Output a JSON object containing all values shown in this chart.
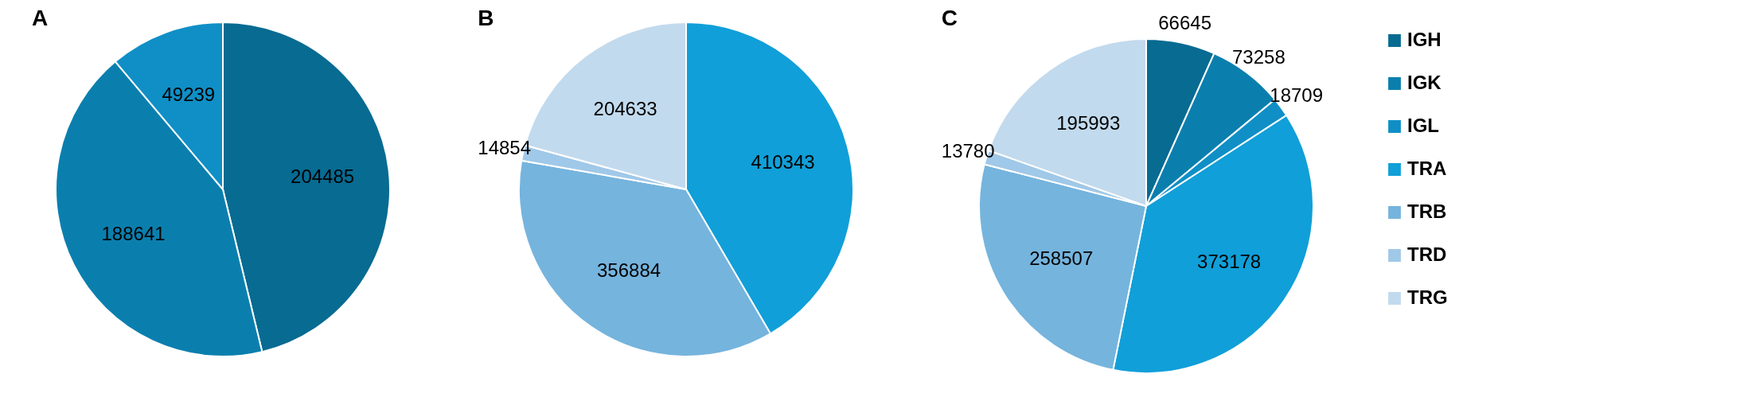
{
  "chart_data": [
    {
      "type": "pie",
      "title": "A",
      "categories": [
        null,
        null,
        null
      ],
      "values": [
        204485,
        188641,
        49239
      ],
      "colors": [
        "#076b92",
        "#0a7fae",
        "#0f8fc6"
      ],
      "data_labels": true
    },
    {
      "type": "pie",
      "title": "B",
      "categories": [
        null,
        null,
        null,
        null
      ],
      "values": [
        410343,
        356884,
        14854,
        204633
      ],
      "colors": [
        "#109fd8",
        "#75b4dd",
        "#a0c8e8",
        "#c2daed"
      ],
      "data_labels": true
    },
    {
      "type": "pie",
      "title": "C",
      "categories": [
        "IGH",
        "IGK",
        "IGL",
        "TRA",
        "TRB",
        "TRD",
        "TRG"
      ],
      "values": [
        66645,
        73258,
        18709,
        373178,
        258507,
        13780,
        195993
      ],
      "colors": [
        "#076b92",
        "#0a7fae",
        "#0f8fc6",
        "#109fd8",
        "#75b4dd",
        "#a0c8e8",
        "#c2daed"
      ],
      "data_labels": true,
      "legend": "right"
    }
  ]
}
